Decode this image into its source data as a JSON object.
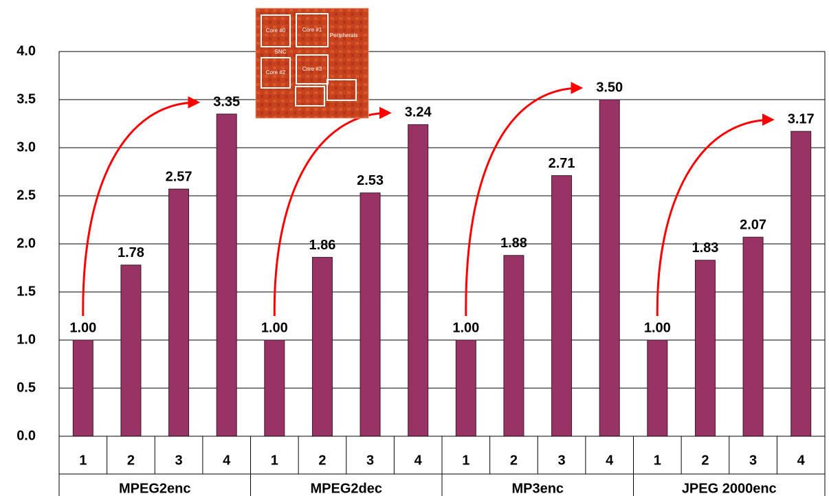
{
  "chart_data": {
    "type": "bar",
    "groups": [
      {
        "name": "MPEG2enc",
        "categories": [
          "1",
          "2",
          "3",
          "4"
        ],
        "values": [
          1.0,
          1.78,
          2.57,
          3.35
        ],
        "value_labels": [
          "1.00",
          "1.78",
          "2.57",
          "3.35"
        ]
      },
      {
        "name": "MPEG2dec",
        "categories": [
          "1",
          "2",
          "3",
          "4"
        ],
        "values": [
          1.0,
          1.86,
          2.53,
          3.24
        ],
        "value_labels": [
          "1.00",
          "1.86",
          "2.53",
          "3.24"
        ]
      },
      {
        "name": "MP3enc",
        "categories": [
          "1",
          "2",
          "3",
          "4"
        ],
        "values": [
          1.0,
          1.88,
          2.71,
          3.5
        ],
        "value_labels": [
          "1.00",
          "1.88",
          "2.71",
          "3.50"
        ]
      },
      {
        "name": "JPEG 2000enc",
        "categories": [
          "1",
          "2",
          "3",
          "4"
        ],
        "values": [
          1.0,
          1.83,
          2.07,
          3.17
        ],
        "value_labels": [
          "1.00",
          "1.83",
          "2.07",
          "3.17"
        ]
      }
    ],
    "color": "#993366",
    "ylim": [
      0,
      4
    ],
    "yticks": [
      {
        "value": 0,
        "label": "0.0"
      },
      {
        "value": 0.5,
        "label": "0.5"
      },
      {
        "value": 1,
        "label": "1.0"
      },
      {
        "value": 1.5,
        "label": "1.5"
      },
      {
        "value": 2,
        "label": "2.0"
      },
      {
        "value": 2.5,
        "label": "2.5"
      },
      {
        "value": 3,
        "label": "3.0"
      },
      {
        "value": 3.5,
        "label": "3.5"
      },
      {
        "value": 4,
        "label": "4.0"
      }
    ],
    "grid": true
  },
  "inset": {
    "labels": [
      "Core #0",
      "Core #1",
      "Core #2",
      "Core #3",
      "SNC",
      "Peripherals"
    ]
  }
}
